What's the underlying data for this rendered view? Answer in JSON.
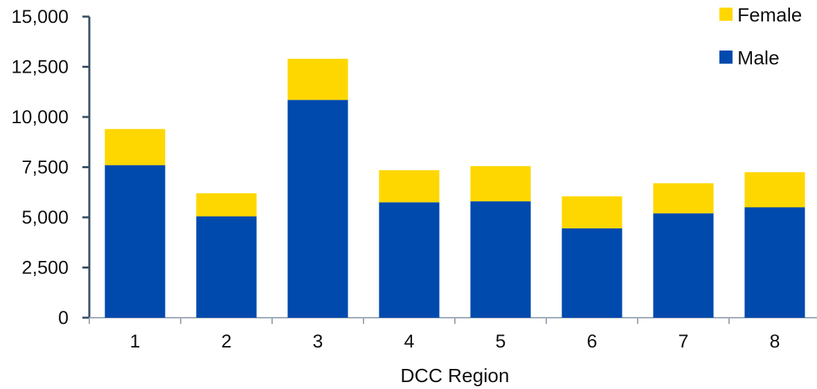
{
  "chart_data": {
    "type": "bar",
    "stacked": true,
    "title": "",
    "xlabel": "DCC Region",
    "ylabel": "",
    "categories": [
      "1",
      "2",
      "3",
      "4",
      "5",
      "6",
      "7",
      "8"
    ],
    "series": [
      {
        "name": "Male",
        "color": "#004aad",
        "values": [
          7600,
          5050,
          10850,
          5750,
          5800,
          4450,
          5200,
          5500
        ]
      },
      {
        "name": "Female",
        "color": "#ffd700",
        "values": [
          1800,
          1150,
          2050,
          1600,
          1750,
          1600,
          1500,
          1750
        ]
      }
    ],
    "ylim": [
      0,
      15000
    ],
    "yticks": [
      "0",
      "2,500",
      "5,000",
      "7,500",
      "10,000",
      "12,500",
      "15,000"
    ],
    "legend": {
      "position": "top-right",
      "order": [
        "Female",
        "Male"
      ]
    },
    "grid": false
  }
}
